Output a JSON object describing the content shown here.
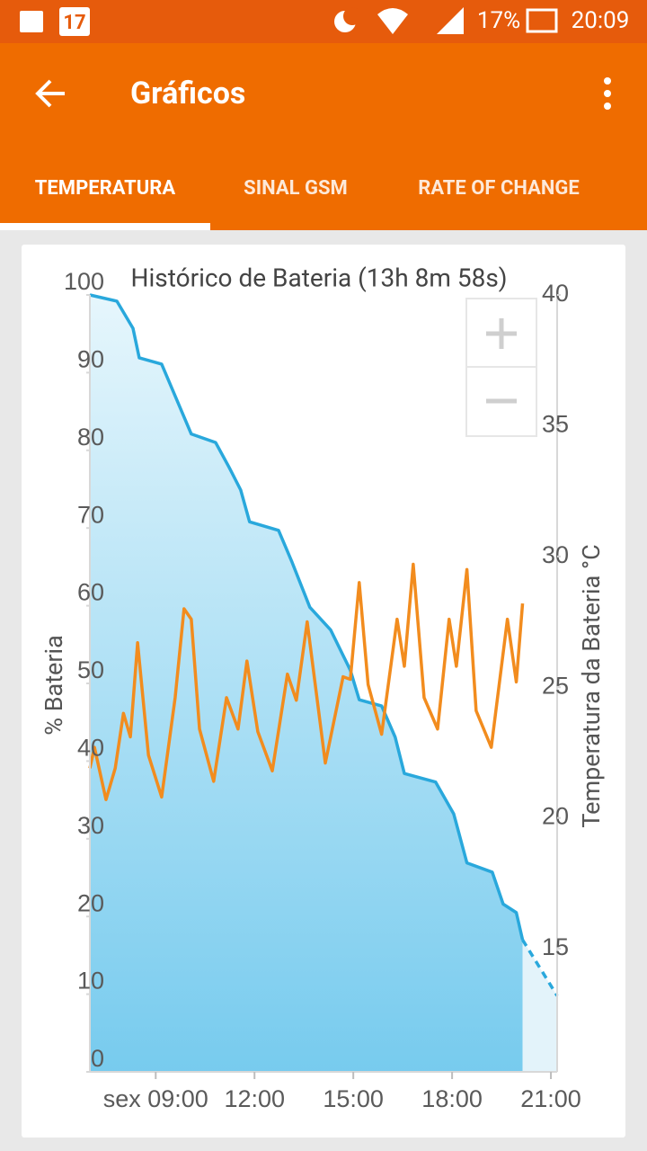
{
  "status_bar": {
    "calendar_day": "17",
    "battery": "17%",
    "time": "20:09"
  },
  "app_bar": {
    "title": "Gráficos"
  },
  "tabs": [
    "TEMPERATURA",
    "SINAL GSM",
    "RATE OF CHANGE"
  ],
  "chart_data": {
    "type": "line",
    "title": "Histórico de Bateria (13h 8m 58s)",
    "y_label": "% Bateria",
    "y2_label": "Temperatura da Bateria °C",
    "xlim": [
      7.0,
      21.19
    ],
    "xticks": [
      {
        "value": 9,
        "label": "sex 09:00"
      },
      {
        "value": 12,
        "label": "12:00"
      },
      {
        "value": 15,
        "label": "15:00"
      },
      {
        "value": 18,
        "label": "18:00"
      },
      {
        "value": 21,
        "label": "21:00"
      }
    ],
    "ylim": [
      0,
      100
    ],
    "yticks": [
      0,
      10,
      20,
      30,
      40,
      50,
      60,
      70,
      80,
      90,
      100
    ],
    "y2lim": [
      10.29,
      40
    ],
    "y2ticks": [
      15,
      20,
      25,
      30,
      35,
      40
    ],
    "grid": false,
    "series": [
      {
        "color": "#29a8dc",
        "axis": "y",
        "area": true,
        "x": [
          7.0,
          7.82,
          8.31,
          8.5,
          9.18,
          10.08,
          10.82,
          11.23,
          11.58,
          11.85,
          12.73,
          13.14,
          13.68,
          14.31,
          14.91,
          15.18,
          15.86,
          16.27,
          16.55,
          17.5,
          18.05,
          18.45,
          19.22,
          19.55,
          19.95,
          20.14
        ],
        "values": [
          100,
          99.2,
          95.7,
          91.9,
          91.1,
          82.1,
          81.0,
          77.8,
          74.9,
          70.8,
          69.7,
          65.6,
          59.8,
          56.9,
          51.7,
          47.9,
          47.1,
          43.1,
          38.4,
          37.3,
          33.2,
          26.9,
          25.7,
          21.6,
          20.5,
          17.0
        ]
      },
      {
        "color": "#29a8dc",
        "axis": "y",
        "area": true,
        "dashed": true,
        "x": [
          20.14,
          21.19
        ],
        "values": [
          17.0,
          9.8
        ]
      },
      {
        "color": "#f28c1e",
        "axis": "y2",
        "x": [
          7.0,
          7.14,
          7.49,
          7.77,
          8.02,
          8.23,
          8.45,
          8.78,
          9.18,
          9.59,
          9.86,
          10.08,
          10.33,
          10.76,
          11.15,
          11.5,
          11.77,
          12.1,
          12.54,
          13.0,
          13.27,
          13.6,
          14.15,
          14.69,
          14.91,
          15.18,
          15.45,
          15.86,
          16.33,
          16.55,
          16.82,
          17.15,
          17.56,
          17.91,
          18.13,
          18.45,
          18.73,
          19.19,
          19.68,
          19.95,
          20.14
        ],
        "values": [
          21.9,
          22.7,
          20.7,
          21.9,
          24.0,
          23.1,
          26.7,
          22.4,
          20.8,
          24.6,
          28.0,
          27.6,
          23.4,
          21.4,
          24.6,
          23.4,
          26.0,
          23.3,
          21.8,
          25.5,
          24.5,
          27.5,
          22.1,
          25.4,
          25.3,
          29.0,
          25.1,
          23.2,
          27.6,
          25.8,
          29.7,
          24.6,
          23.4,
          27.6,
          25.8,
          29.5,
          24.1,
          22.7,
          27.6,
          25.2,
          28.2
        ]
      }
    ]
  }
}
